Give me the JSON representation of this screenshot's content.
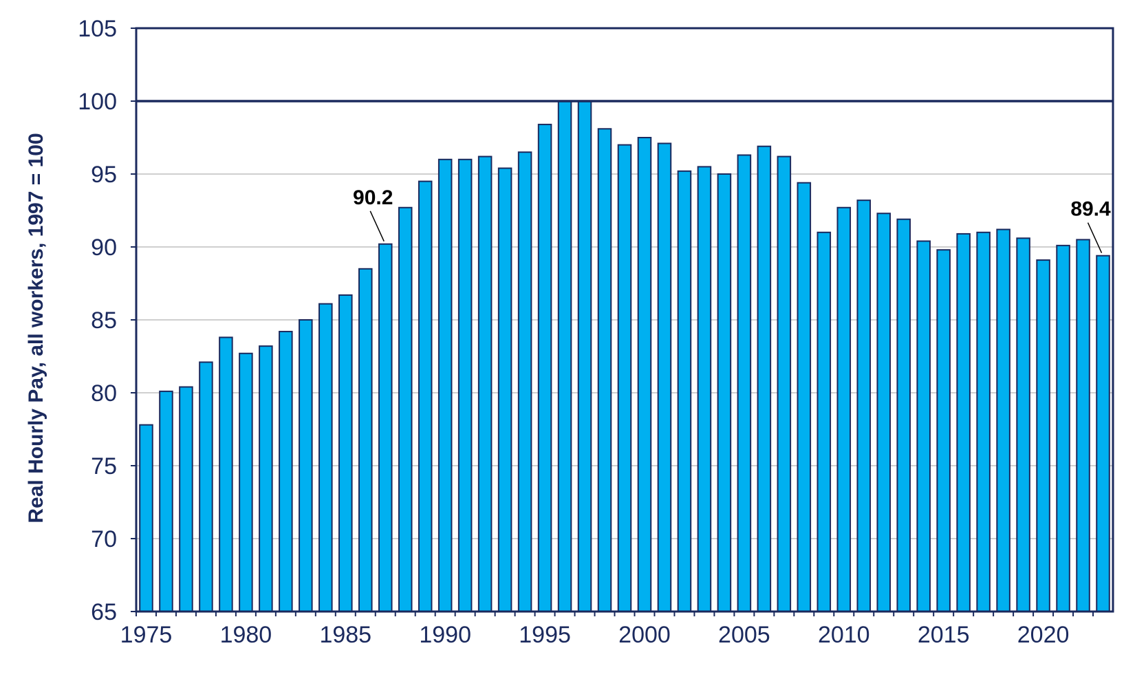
{
  "chart_data": {
    "type": "bar",
    "title": "",
    "xlabel": "",
    "ylabel": "Real Hourly Pay, all workers, 1997 = 100",
    "ylim": [
      65,
      105
    ],
    "yticks": [
      "65",
      "70",
      "75",
      "80",
      "85",
      "90",
      "95",
      "100",
      "105"
    ],
    "xticks": [
      "1975",
      "1980",
      "1985",
      "1990",
      "1995",
      "2000",
      "2005",
      "2010",
      "2015",
      "2020"
    ],
    "grid": true,
    "reference_line": 100,
    "categories": [
      1975,
      1976,
      1977,
      1978,
      1979,
      1980,
      1981,
      1982,
      1983,
      1984,
      1985,
      1986,
      1987,
      1988,
      1989,
      1990,
      1991,
      1992,
      1993,
      1994,
      1995,
      1996,
      1997,
      1998,
      1999,
      2000,
      2001,
      2002,
      2003,
      2004,
      2005,
      2006,
      2007,
      2008,
      2009,
      2010,
      2011,
      2012,
      2013,
      2014,
      2015,
      2016,
      2017,
      2018,
      2019,
      2020,
      2021,
      2022,
      2023
    ],
    "values": [
      77.8,
      80.1,
      80.4,
      82.1,
      83.8,
      82.7,
      83.2,
      84.2,
      85.0,
      86.1,
      86.7,
      88.5,
      90.2,
      92.7,
      94.5,
      96.0,
      96.0,
      96.2,
      95.4,
      96.5,
      98.4,
      100.0,
      100.0,
      98.1,
      97.0,
      97.5,
      97.1,
      95.2,
      95.5,
      95.0,
      96.3,
      96.9,
      96.2,
      94.4,
      91.0,
      92.7,
      93.2,
      92.3,
      91.9,
      90.4,
      89.8,
      90.9,
      91.0,
      91.2,
      90.6,
      89.1,
      90.1,
      90.5,
      89.4
    ],
    "annotations": [
      {
        "text": "90.2",
        "year": 1987
      },
      {
        "text": "89.4",
        "year": 2023
      }
    ],
    "colors": {
      "bar_fill": "#00b0f0",
      "bar_stroke": "#1b2a5e",
      "axis": "#1b2a5e",
      "grid": "#bfbfbf"
    }
  }
}
